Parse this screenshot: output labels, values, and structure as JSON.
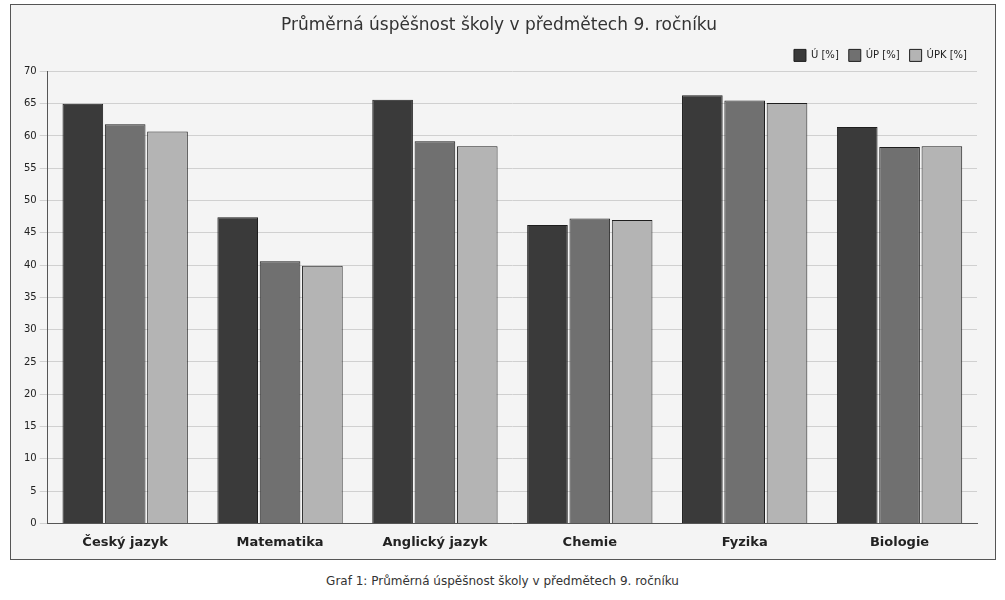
{
  "chart_data": {
    "type": "bar",
    "title": "Průměrná úspěšnost školy v předmětech 9. ročníku",
    "caption": "Graf 1: Průměrná úspěšnost školy v předmětech 9. ročníku",
    "categories": [
      "Český jazyk",
      "Matematika",
      "Anglický jazyk",
      "Chemie",
      "Fyzika",
      "Biologie"
    ],
    "series": [
      {
        "name": "Ú [%]",
        "color": "#3a3a3a",
        "values": [
          65,
          47.4,
          65.6,
          46.2,
          66.3,
          61.4
        ]
      },
      {
        "name": "ÚP [%]",
        "color": "#707070",
        "values": [
          61.8,
          40.6,
          59.2,
          47.2,
          65.5,
          58.3
        ]
      },
      {
        "name": "ÚPK [%]",
        "color": "#b4b4b4",
        "values": [
          60.7,
          39.9,
          58.4,
          47,
          65.1,
          58.4
        ]
      }
    ],
    "ylim": [
      0,
      70
    ],
    "yticks": [
      0,
      5,
      10,
      15,
      20,
      25,
      30,
      35,
      40,
      45,
      50,
      55,
      60,
      65,
      70
    ],
    "grid": true,
    "legend": "top-right"
  }
}
